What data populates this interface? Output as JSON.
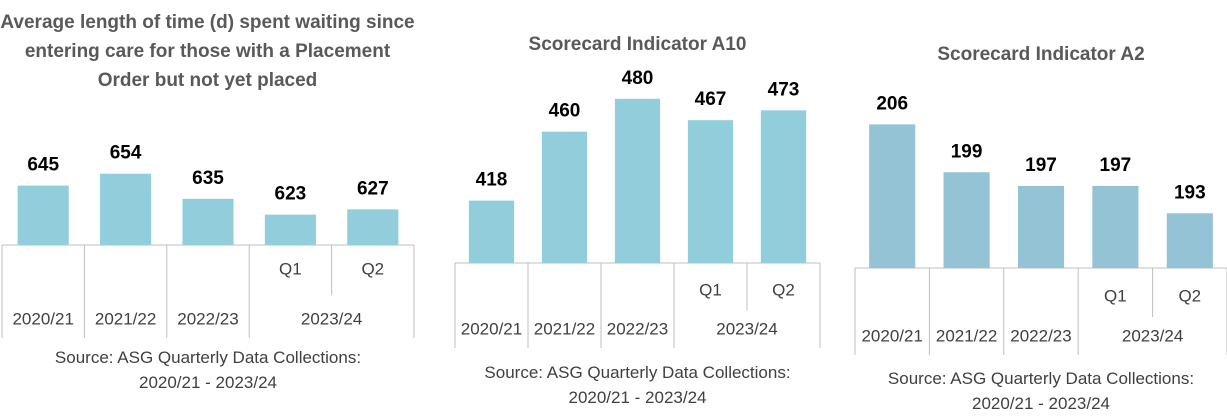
{
  "chart_data": [
    {
      "type": "bar",
      "title": "Average length of time (d) spent waiting since entering care for those with a Placement Order but not yet placed",
      "categories": [
        "2020/21",
        "2021/22",
        "2022/23",
        "Q1",
        "Q2"
      ],
      "category_groups": [
        {
          "label": "2023/24",
          "span": [
            3,
            4
          ]
        }
      ],
      "values": [
        645,
        654,
        635,
        623,
        627
      ],
      "color": "#92cddc",
      "ylim": [
        600,
        700
      ],
      "source": "Source: ASG Quarterly Data Collections: 2020/21 - 2023/24"
    },
    {
      "type": "bar",
      "title": "Scorecard Indicator A10",
      "categories": [
        "2020/21",
        "2021/22",
        "2022/23",
        "Q1",
        "Q2"
      ],
      "category_groups": [
        {
          "label": "2023/24",
          "span": [
            3,
            4
          ]
        }
      ],
      "values": [
        418,
        460,
        480,
        467,
        473
      ],
      "color": "#92cddc",
      "ylim": [
        380,
        500
      ],
      "source": "Source: ASG Quarterly Data Collections: 2020/21 - 2023/24"
    },
    {
      "type": "bar",
      "title": "Scorecard Indicator A2",
      "categories": [
        "2020/21",
        "2021/22",
        "2022/23",
        "Q1",
        "Q2"
      ],
      "category_groups": [
        {
          "label": "2023/24",
          "span": [
            3,
            4
          ]
        }
      ],
      "values": [
        206,
        199,
        197,
        197,
        193
      ],
      "color": "#93c3d4",
      "ylim": [
        185,
        210
      ],
      "source": "Source: ASG Quarterly Data Collections: 2020/21 - 2023/24"
    }
  ]
}
